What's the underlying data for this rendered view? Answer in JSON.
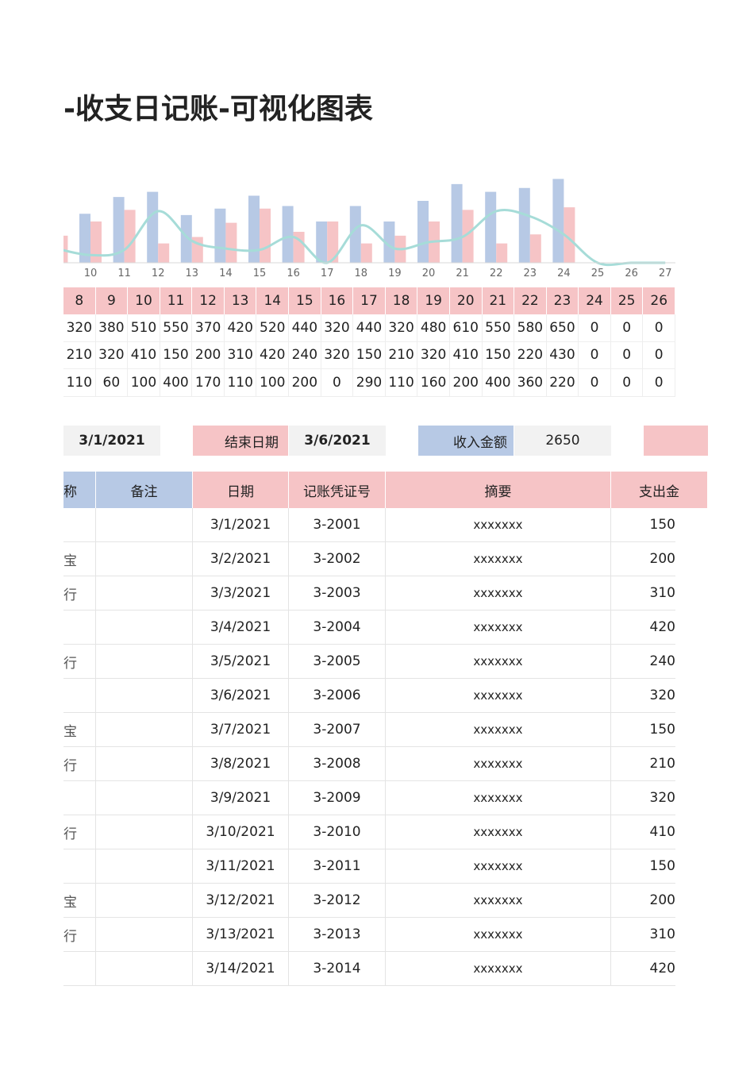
{
  "header": {
    "title": "-收支日记账-可视化图表"
  },
  "chart_data": {
    "type": "bar",
    "categories": [
      null,
      "10",
      "11",
      "12",
      "13",
      "14",
      "15",
      "16",
      "17",
      "18",
      "19",
      "20",
      "21",
      "22",
      "23",
      "24",
      "25",
      "26",
      "27"
    ],
    "series": [
      {
        "color": "#b7c9e5",
        "values": [
          320,
          380,
          510,
          550,
          370,
          420,
          520,
          440,
          320,
          440,
          320,
          480,
          610,
          550,
          580,
          650,
          0,
          0,
          0
        ]
      },
      {
        "color": "#f6c4c6",
        "values": [
          210,
          320,
          410,
          150,
          200,
          310,
          420,
          240,
          320,
          150,
          210,
          320,
          410,
          150,
          220,
          430,
          0,
          0,
          0
        ]
      },
      {
        "type": "line",
        "color": "#a6dcd8",
        "values": [
          110,
          60,
          100,
          400,
          170,
          110,
          100,
          200,
          0,
          290,
          110,
          160,
          200,
          400,
          360,
          220,
          0,
          0,
          0
        ]
      }
    ],
    "ylim": [
      0,
      800
    ]
  },
  "summary_table": {
    "header": [
      8,
      9,
      10,
      11,
      12,
      13,
      14,
      15,
      16,
      17,
      18,
      19,
      20,
      21,
      22,
      23,
      24,
      25,
      26
    ],
    "rows": [
      [
        320,
        380,
        510,
        550,
        370,
        420,
        520,
        440,
        320,
        440,
        320,
        480,
        610,
        550,
        580,
        650,
        0,
        0,
        0
      ],
      [
        210,
        320,
        410,
        150,
        200,
        310,
        420,
        240,
        320,
        150,
        210,
        320,
        410,
        150,
        220,
        430,
        0,
        0,
        0
      ],
      [
        110,
        60,
        100,
        400,
        170,
        110,
        100,
        200,
        0,
        290,
        110,
        160,
        200,
        400,
        360,
        220,
        0,
        0,
        0
      ]
    ]
  },
  "filter": {
    "start_date": "3/1/2021",
    "end_label": "结束日期",
    "end_date": "3/6/2021",
    "income_label": "收入金额",
    "income_total": 2650
  },
  "ledger": {
    "columns": [
      "称",
      "备注",
      "日期",
      "记账凭证号",
      "摘要",
      "支出金"
    ],
    "rows": [
      {
        "name": null,
        "date": "3/1/2021",
        "voucher": "3-2001",
        "summary": "xxxxxxx",
        "amount": 150
      },
      {
        "name": "宝",
        "date": "3/2/2021",
        "voucher": "3-2002",
        "summary": "xxxxxxx",
        "amount": 200
      },
      {
        "name": "行",
        "date": "3/3/2021",
        "voucher": "3-2003",
        "summary": "xxxxxxx",
        "amount": 310
      },
      {
        "name": null,
        "date": "3/4/2021",
        "voucher": "3-2004",
        "summary": "xxxxxxx",
        "amount": 420
      },
      {
        "name": "行",
        "date": "3/5/2021",
        "voucher": "3-2005",
        "summary": "xxxxxxx",
        "amount": 240
      },
      {
        "name": null,
        "date": "3/6/2021",
        "voucher": "3-2006",
        "summary": "xxxxxxx",
        "amount": 320
      },
      {
        "name": "宝",
        "date": "3/7/2021",
        "voucher": "3-2007",
        "summary": "xxxxxxx",
        "amount": 150
      },
      {
        "name": "行",
        "date": "3/8/2021",
        "voucher": "3-2008",
        "summary": "xxxxxxx",
        "amount": 210
      },
      {
        "name": null,
        "date": "3/9/2021",
        "voucher": "3-2009",
        "summary": "xxxxxxx",
        "amount": 320
      },
      {
        "name": "行",
        "date": "3/10/2021",
        "voucher": "3-2010",
        "summary": "xxxxxxx",
        "amount": 410
      },
      {
        "name": null,
        "date": "3/11/2021",
        "voucher": "3-2011",
        "summary": "xxxxxxx",
        "amount": 150
      },
      {
        "name": "宝",
        "date": "3/12/2021",
        "voucher": "3-2012",
        "summary": "xxxxxxx",
        "amount": 200
      },
      {
        "name": "行",
        "date": "3/13/2021",
        "voucher": "3-2013",
        "summary": "xxxxxxx",
        "amount": 310
      },
      {
        "name": null,
        "date": "3/14/2021",
        "voucher": "3-2014",
        "summary": "xxxxxxx",
        "amount": 420
      }
    ]
  }
}
